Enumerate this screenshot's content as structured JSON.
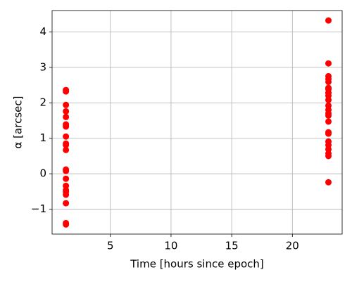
{
  "chart_data": {
    "type": "scatter",
    "xlabel": "Time [hours since epoch]",
    "ylabel": "α [arcsec]",
    "color": "#ff0000",
    "grid": true,
    "xlim": [
      0.2,
      24.1
    ],
    "ylim": [
      -1.7,
      4.6
    ],
    "xticks": [
      5,
      10,
      15,
      20
    ],
    "yticks": [
      {
        "value": -1,
        "label": "−1"
      },
      0,
      1,
      2,
      3,
      4
    ],
    "x": [
      1.34,
      1.34,
      1.34,
      1.34,
      1.34,
      1.34,
      1.34,
      1.34,
      1.34,
      1.34,
      1.34,
      1.34,
      1.34,
      1.34,
      1.34,
      1.34,
      1.34,
      1.34,
      1.34,
      1.34,
      1.34,
      22.97,
      22.97,
      22.97,
      22.97,
      22.97,
      22.97,
      22.97,
      22.97,
      22.97,
      22.97,
      22.97,
      22.97,
      22.97,
      22.97,
      22.97,
      22.97,
      22.97,
      22.97,
      22.97,
      22.97,
      22.97,
      22.97,
      22.97
    ],
    "values": [
      2.36,
      2.32,
      1.94,
      1.76,
      1.6,
      1.39,
      1.33,
      1.05,
      0.85,
      0.81,
      0.67,
      0.12,
      0.08,
      -0.14,
      -0.34,
      -0.46,
      -0.51,
      -0.59,
      -0.83,
      -1.39,
      -1.43,
      4.32,
      3.11,
      2.75,
      2.67,
      2.59,
      2.42,
      2.38,
      2.28,
      2.2,
      2.08,
      1.92,
      1.8,
      1.7,
      1.64,
      1.47,
      1.17,
      1.13,
      0.91,
      0.81,
      0.69,
      0.57,
      0.5,
      -0.24
    ]
  }
}
